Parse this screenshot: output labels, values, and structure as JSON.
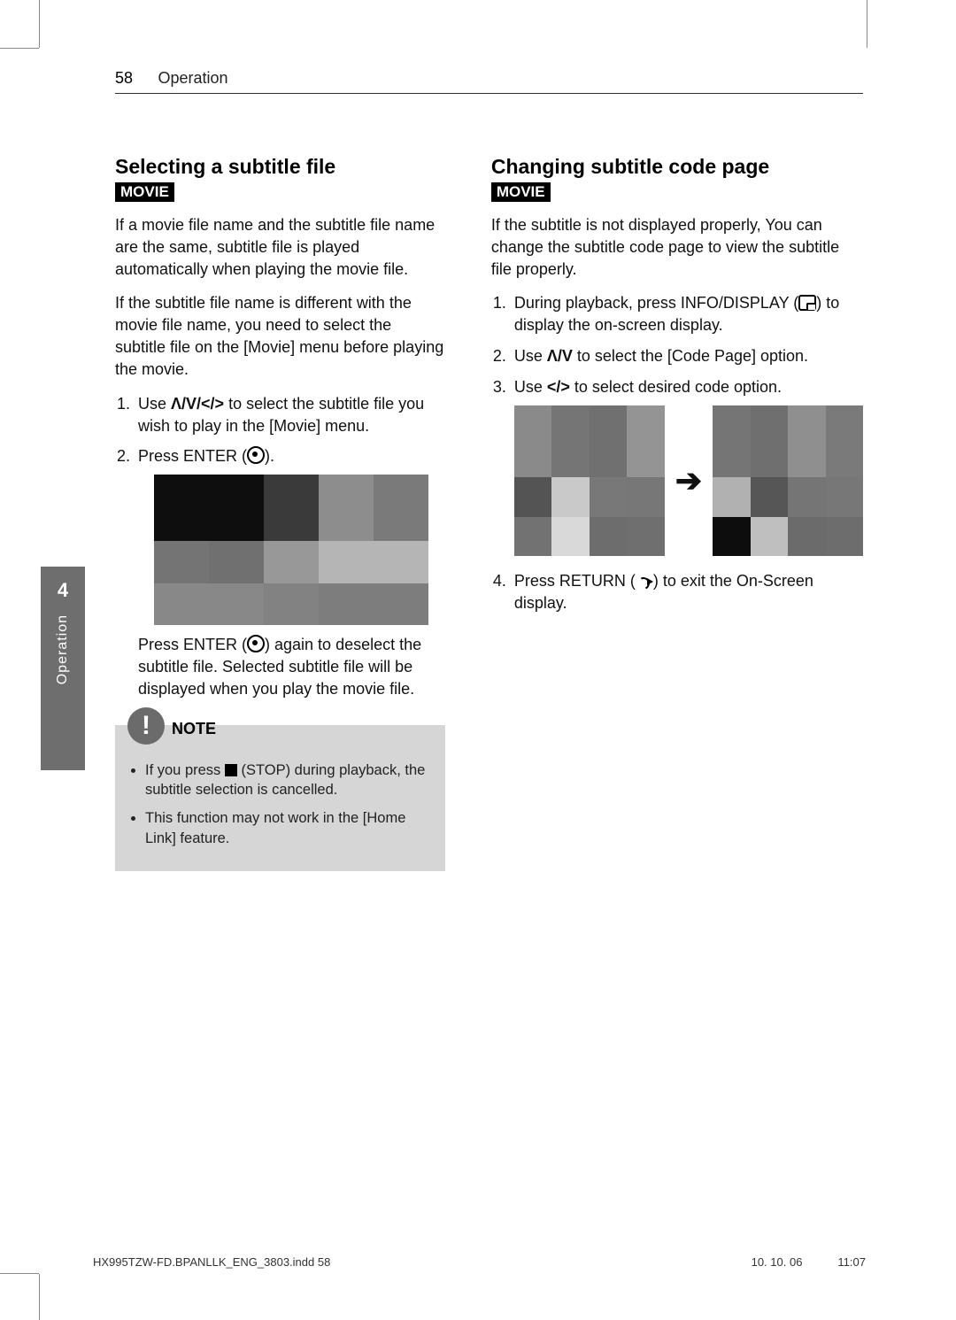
{
  "header": {
    "page_num": "58",
    "section": "Operation"
  },
  "side_tab": {
    "number": "4",
    "label": "Operation"
  },
  "left": {
    "title": "Selecting a subtitle file",
    "badge": "MOVIE",
    "p1": "If a movie file name and the subtitle file name are the same, subtitle file is played automatically when playing the movie file.",
    "p2": "If the subtitle file name is different with the movie file name, you need to select the subtitle file on the [Movie] menu before playing the movie.",
    "step1_a": "Use ",
    "step1_nav": "Λ/V/</>",
    "step1_b": " to select the subtitle file you wish to play in the [Movie] menu.",
    "step2_a": "Press ENTER (",
    "step2_b": ").",
    "after_img_a": "Press ENTER (",
    "after_img_b": ") again to deselect the subtitle file. Selected subtitle file will be displayed when you play the movie file.",
    "note_label": "NOTE",
    "note1_a": "If you press ",
    "note1_b": " (STOP) during playback, the subtitle selection is cancelled.",
    "note2": "This function may not work in the [Home Link] feature.",
    "mosaic_colors": [
      "#0e0e0e",
      "#0e0e0e",
      "#3a3a3a",
      "#8d8d8d",
      "#7a7a7a",
      "#747474",
      "#707070",
      "#989898",
      "#b5b5b5",
      "#b5b5b5",
      "#888888",
      "#888888",
      "#828282",
      "#7d7d7d",
      "#7d7d7d"
    ]
  },
  "right": {
    "title": "Changing subtitle code page",
    "badge": "MOVIE",
    "p1": "If the subtitle is not displayed properly, You can change the subtitle code page to view the subtitle file properly.",
    "s1_a": "During playback, press INFO/DISPLAY (",
    "s1_b": ") to display the on-screen display.",
    "s2_a": "Use ",
    "s2_nav": "Λ/V",
    "s2_b": " to select the [Code Page] option.",
    "s3_a": "Use ",
    "s3_nav": "</>",
    "s3_b": " to select desired code option.",
    "s4_a": "Press RETURN (",
    "s4_b": ") to exit the On-Screen display.",
    "mosaicA_colors": [
      "#8a8a8a",
      "#757575",
      "#707070",
      "#949494",
      "#545454",
      "#c9c9c9",
      "#787878",
      "#777777",
      "#727272",
      "#d9d9d9",
      "#6d6d6d",
      "#6f6f6f"
    ],
    "mosaicB_colors": [
      "#757575",
      "#6f6f6f",
      "#8f8f8f",
      "#7a7a7a",
      "#b1b1b1",
      "#565656",
      "#757575",
      "#777777",
      "#0d0d0d",
      "#bfbfbf",
      "#6b6b6b",
      "#6d6d6d"
    ]
  },
  "footer": {
    "file": "HX995TZW-FD.BPANLLK_ENG_3803.indd   58",
    "date": "10. 10. 06",
    "time": "11:07"
  }
}
